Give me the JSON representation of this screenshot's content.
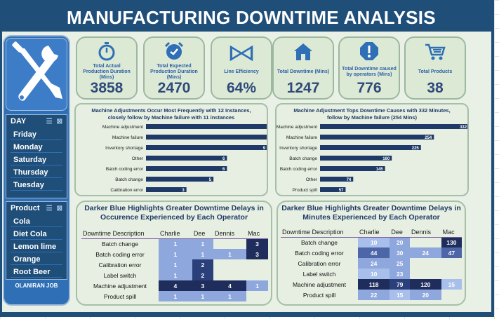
{
  "title": "MANUFACTURING DOWNTIME ANALYSIS",
  "colors": {
    "navy": "#1f4e79",
    "accent": "#2e6fb5",
    "bar": "#1f3a68"
  },
  "kpis": [
    {
      "icon": "stopwatch-icon",
      "label": "Total Actual Production Duration (Mins)",
      "value": "3858"
    },
    {
      "icon": "alarm-clock-icon",
      "label": "Total Expected Production Duration (Mins)",
      "value": "2470"
    },
    {
      "icon": "bowtie-icon",
      "label": "Line Efficiency",
      "value": "64%"
    },
    {
      "icon": "house-icon",
      "label": "Total Downtime (Mins)",
      "value": "1247"
    },
    {
      "icon": "warning-icon",
      "label": "Total Downtime caused by operators (Mins)",
      "value": "776"
    },
    {
      "icon": "cart-icon",
      "label": "Total Products",
      "value": "38"
    }
  ],
  "day_slicer": {
    "header": "DAY",
    "items": [
      "Friday",
      "Monday",
      "Saturday",
      "Thursday",
      "Tuesday"
    ]
  },
  "product_slicer": {
    "header": "Product",
    "items": [
      "Cola",
      "Diet Cola",
      "Lemon lime",
      "Orange",
      "Root Beer"
    ]
  },
  "author": "OLANIRAN JOB",
  "chart_data": [
    {
      "type": "bar",
      "title": "Machine Adjustments Occur Most Frequently with 12 Instances, closely follow by Machine failure with 11 instances",
      "categories": [
        "Machine adjustment",
        "Machine failure",
        "Inventory shortage",
        "Other",
        "Batch coding error",
        "Batch change",
        "Calibration error"
      ],
      "values": [
        12,
        11,
        9,
        6,
        6,
        5,
        3
      ],
      "xlim": [
        0,
        13
      ]
    },
    {
      "type": "bar",
      "title": "Machine Adjustment Tops Downtime Causes with 332 Minutes, follow by Machine failure (254 Mins)",
      "categories": [
        "Machine adjustment",
        "Machine failure",
        "Inventory shortage",
        "Batch change",
        "Batch coding error",
        "Other",
        "Product spill"
      ],
      "values": [
        332,
        254,
        225,
        160,
        145,
        74,
        57
      ],
      "xlim": [
        0,
        360
      ]
    }
  ],
  "table1": {
    "title_line1": "Darker Blue Highlights Greater Downtime Delays in",
    "title_line2": "Occurence Experienced by Each Operator",
    "columns": [
      "Downtime Description",
      "Charlie",
      "Dee",
      "Dennis",
      "Mac"
    ],
    "rows": [
      [
        "Batch change",
        "1",
        "1",
        "",
        "3"
      ],
      [
        "Batch coding error",
        "1",
        "1",
        "1",
        "3"
      ],
      [
        "Calibration error",
        "1",
        "2",
        "",
        ""
      ],
      [
        "Label switch",
        "1",
        "2",
        "",
        ""
      ],
      [
        "Machine adjustment",
        "4",
        "3",
        "4",
        "1"
      ],
      [
        "Product spill",
        "1",
        "1",
        "1",
        ""
      ]
    ]
  },
  "table2": {
    "title_line1": "Darker Blue Highlights Greater Downtime Delays in",
    "title_line2": "Minutes Experienced by Each Operator",
    "columns": [
      "Downtime Description",
      "Charlie",
      "Dee",
      "Dennis",
      "Mac"
    ],
    "rows": [
      [
        "Batch change",
        "10",
        "20",
        "",
        "130"
      ],
      [
        "Batch coding error",
        "44",
        "30",
        "24",
        "47"
      ],
      [
        "Calibration error",
        "24",
        "25",
        "",
        ""
      ],
      [
        "Label switch",
        "10",
        "23",
        "",
        ""
      ],
      [
        "Machine adjustment",
        "118",
        "79",
        "120",
        "15"
      ],
      [
        "Product spill",
        "22",
        "15",
        "20",
        ""
      ]
    ]
  }
}
